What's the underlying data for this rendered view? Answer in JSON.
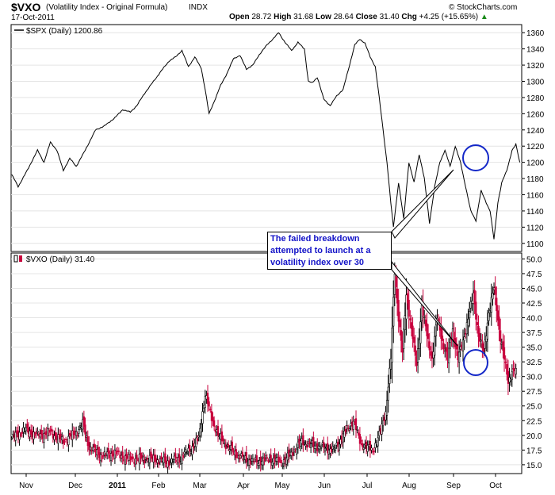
{
  "header": {
    "symbol": "$VXO",
    "name": "(Volatility Index - Original Formula)",
    "exchange": "INDX",
    "date": "17-Oct-2011",
    "open_label": "Open",
    "open": "28.72",
    "high_label": "High",
    "high": "31.68",
    "low_label": "Low",
    "low": "28.64",
    "close_label": "Close",
    "close": "31.40",
    "chg_label": "Chg",
    "chg": "+4.25 (+15.65%)",
    "copyright": "© StockCharts.com"
  },
  "annotation": "The failed breakdown attempted to launch at a volatility index over 30",
  "colors": {
    "up": "#000000",
    "down": "#c8003c",
    "circle": "#1428c8",
    "annotation": "#1414c8"
  },
  "chart_data": [
    {
      "type": "line",
      "legend": "$SPX (Daily) 1200.86",
      "ylim": [
        1090,
        1370
      ],
      "yticks": [
        1100,
        1120,
        1140,
        1160,
        1180,
        1200,
        1220,
        1240,
        1260,
        1280,
        1300,
        1320,
        1340,
        1360
      ],
      "x_months": [
        "Nov",
        "Dec",
        "2011",
        "Feb",
        "Mar",
        "Apr",
        "May",
        "Jun",
        "Jul",
        "Aug",
        "Sep",
        "Oct"
      ],
      "anchors": [
        [
          0,
          1185
        ],
        [
          5,
          1170
        ],
        [
          12,
          1190
        ],
        [
          20,
          1215
        ],
        [
          25,
          1200
        ],
        [
          30,
          1225
        ],
        [
          35,
          1215
        ],
        [
          40,
          1190
        ],
        [
          45,
          1205
        ],
        [
          50,
          1195
        ],
        [
          57,
          1215
        ],
        [
          65,
          1240
        ],
        [
          72,
          1245
        ],
        [
          80,
          1255
        ],
        [
          86,
          1265
        ],
        [
          92,
          1262
        ],
        [
          97,
          1270
        ],
        [
          103,
          1285
        ],
        [
          110,
          1300
        ],
        [
          117,
          1315
        ],
        [
          122,
          1325
        ],
        [
          127,
          1330
        ],
        [
          132,
          1338
        ],
        [
          137,
          1318
        ],
        [
          142,
          1330
        ],
        [
          147,
          1316
        ],
        [
          150,
          1290
        ],
        [
          153,
          1260
        ],
        [
          157,
          1275
        ],
        [
          162,
          1295
        ],
        [
          167,
          1310
        ],
        [
          172,
          1328
        ],
        [
          177,
          1332
        ],
        [
          182,
          1315
        ],
        [
          187,
          1320
        ],
        [
          192,
          1333
        ],
        [
          198,
          1345
        ],
        [
          203,
          1353
        ],
        [
          207,
          1360
        ],
        [
          212,
          1348
        ],
        [
          217,
          1338
        ],
        [
          222,
          1348
        ],
        [
          227,
          1340
        ],
        [
          230,
          1300
        ],
        [
          233,
          1298
        ],
        [
          237,
          1305
        ],
        [
          242,
          1278
        ],
        [
          247,
          1270
        ],
        [
          252,
          1282
        ],
        [
          257,
          1290
        ],
        [
          262,
          1320
        ],
        [
          266,
          1345
        ],
        [
          270,
          1352
        ],
        [
          274,
          1347
        ],
        [
          278,
          1330
        ],
        [
          282,
          1318
        ],
        [
          285,
          1280
        ],
        [
          288,
          1240
        ],
        [
          291,
          1200
        ],
        [
          294,
          1150
        ],
        [
          296,
          1120
        ],
        [
          300,
          1175
        ],
        [
          304,
          1130
        ],
        [
          308,
          1200
        ],
        [
          312,
          1175
        ],
        [
          316,
          1210
        ],
        [
          320,
          1180
        ],
        [
          324,
          1125
        ],
        [
          328,
          1170
        ],
        [
          332,
          1200
        ],
        [
          336,
          1215
        ],
        [
          340,
          1195
        ],
        [
          344,
          1220
        ],
        [
          348,
          1200
        ],
        [
          352,
          1170
        ],
        [
          356,
          1140
        ],
        [
          360,
          1128
        ],
        [
          364,
          1165
        ],
        [
          368,
          1150
        ],
        [
          371,
          1140
        ],
        [
          374,
          1105
        ],
        [
          377,
          1150
        ],
        [
          380,
          1175
        ],
        [
          384,
          1190
        ],
        [
          388,
          1215
        ],
        [
          391,
          1222
        ],
        [
          394,
          1200
        ]
      ],
      "last": 1200.86
    },
    {
      "type": "candlestick",
      "legend": "$VXO (Daily) 31.40",
      "ylim": [
        13.5,
        51
      ],
      "yticks": [
        15,
        17.5,
        20,
        22.5,
        25,
        27.5,
        30,
        32.5,
        35,
        37.5,
        40,
        42.5,
        45,
        47.5,
        50
      ],
      "anchors": [
        [
          0,
          19.5
        ],
        [
          10,
          21
        ],
        [
          20,
          20
        ],
        [
          30,
          20.5
        ],
        [
          40,
          19
        ],
        [
          50,
          20.5
        ],
        [
          55,
          22
        ],
        [
          60,
          18
        ],
        [
          70,
          16.5
        ],
        [
          80,
          17
        ],
        [
          90,
          16
        ],
        [
          100,
          16
        ],
        [
          110,
          16
        ],
        [
          120,
          15.5
        ],
        [
          130,
          16
        ],
        [
          140,
          18
        ],
        [
          145,
          19.5
        ],
        [
          150,
          27
        ],
        [
          155,
          23
        ],
        [
          160,
          20
        ],
        [
          170,
          17.5
        ],
        [
          180,
          16
        ],
        [
          190,
          15.5
        ],
        [
          200,
          16
        ],
        [
          210,
          15.5
        ],
        [
          215,
          16.5
        ],
        [
          225,
          19
        ],
        [
          230,
          18.5
        ],
        [
          240,
          18
        ],
        [
          250,
          17.5
        ],
        [
          260,
          21
        ],
        [
          265,
          22.5
        ],
        [
          270,
          19
        ],
        [
          275,
          18
        ],
        [
          280,
          17.5
        ],
        [
          285,
          20
        ],
        [
          290,
          24
        ],
        [
          294,
          33
        ],
        [
          297,
          48
        ],
        [
          300,
          40
        ],
        [
          303,
          34
        ],
        [
          306,
          44
        ],
        [
          310,
          38
        ],
        [
          314,
          32
        ],
        [
          318,
          42
        ],
        [
          322,
          37
        ],
        [
          326,
          33
        ],
        [
          330,
          40
        ],
        [
          334,
          36
        ],
        [
          338,
          33
        ],
        [
          342,
          38
        ],
        [
          346,
          33
        ],
        [
          350,
          36
        ],
        [
          354,
          40
        ],
        [
          358,
          44
        ],
        [
          362,
          37
        ],
        [
          366,
          34
        ],
        [
          370,
          41
        ],
        [
          374,
          45
        ],
        [
          378,
          38
        ],
        [
          382,
          33
        ],
        [
          385,
          29
        ],
        [
          388,
          31
        ],
        [
          391,
          31.4
        ]
      ],
      "last": 31.4
    }
  ]
}
